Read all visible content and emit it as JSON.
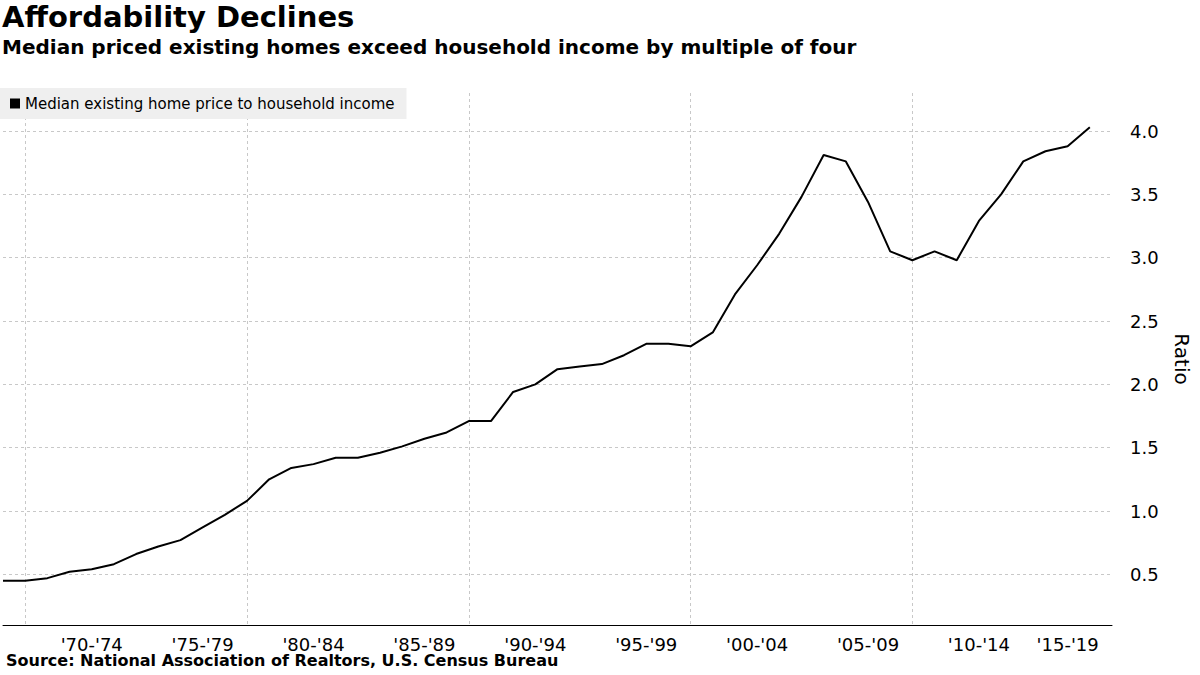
{
  "chart_data": {
    "type": "line",
    "title": "Affordability Declines",
    "subtitle": "Median priced existing homes exceed household income by multiple of four",
    "source": "Source: National Association of Realtors, U.S. Census Bureau",
    "y_label": "Ratio",
    "categories": [
      null,
      null,
      null,
      null,
      "'70-'74",
      null,
      null,
      null,
      null,
      "'75-'79",
      null,
      null,
      null,
      null,
      "'80-'84",
      null,
      null,
      null,
      null,
      "'85-'89",
      null,
      null,
      null,
      null,
      "'90-'94",
      null,
      null,
      null,
      null,
      "'95-'99",
      null,
      null,
      null,
      null,
      "'00-'04",
      null,
      null,
      null,
      null,
      "'05-'09",
      null,
      null,
      null,
      null,
      "'10-'14",
      null,
      null,
      null,
      "'15-'19",
      null,
      null
    ],
    "series": [
      {
        "name": "Median existing home price to household income",
        "color": "#000000",
        "values": [
          0.45,
          0.45,
          0.47,
          0.52,
          0.54,
          0.58,
          0.66,
          0.72,
          0.77,
          0.87,
          0.97,
          1.08,
          1.25,
          1.34,
          1.37,
          1.42,
          1.42,
          1.46,
          1.51,
          1.57,
          1.62,
          1.71,
          1.71,
          1.94,
          2.0,
          2.12,
          2.14,
          2.16,
          2.23,
          2.32,
          2.32,
          2.3,
          2.41,
          2.71,
          2.94,
          3.19,
          3.48,
          3.81,
          3.76,
          3.44,
          3.05,
          2.98,
          3.05,
          2.98,
          3.29,
          3.5,
          3.76,
          3.84,
          3.88,
          4.03,
          null
        ]
      }
    ],
    "ylim": [
      0.1,
      4.3
    ],
    "yticks": [
      0.5,
      {
        "value": 1,
        "label": "1.0"
      },
      1.5,
      {
        "value": 2,
        "label": "2.0"
      },
      2.5,
      {
        "value": 3,
        "label": "3.0"
      },
      3.5,
      {
        "value": 4,
        "label": "4.0"
      }
    ],
    "grid": true,
    "legend": "upper left"
  }
}
